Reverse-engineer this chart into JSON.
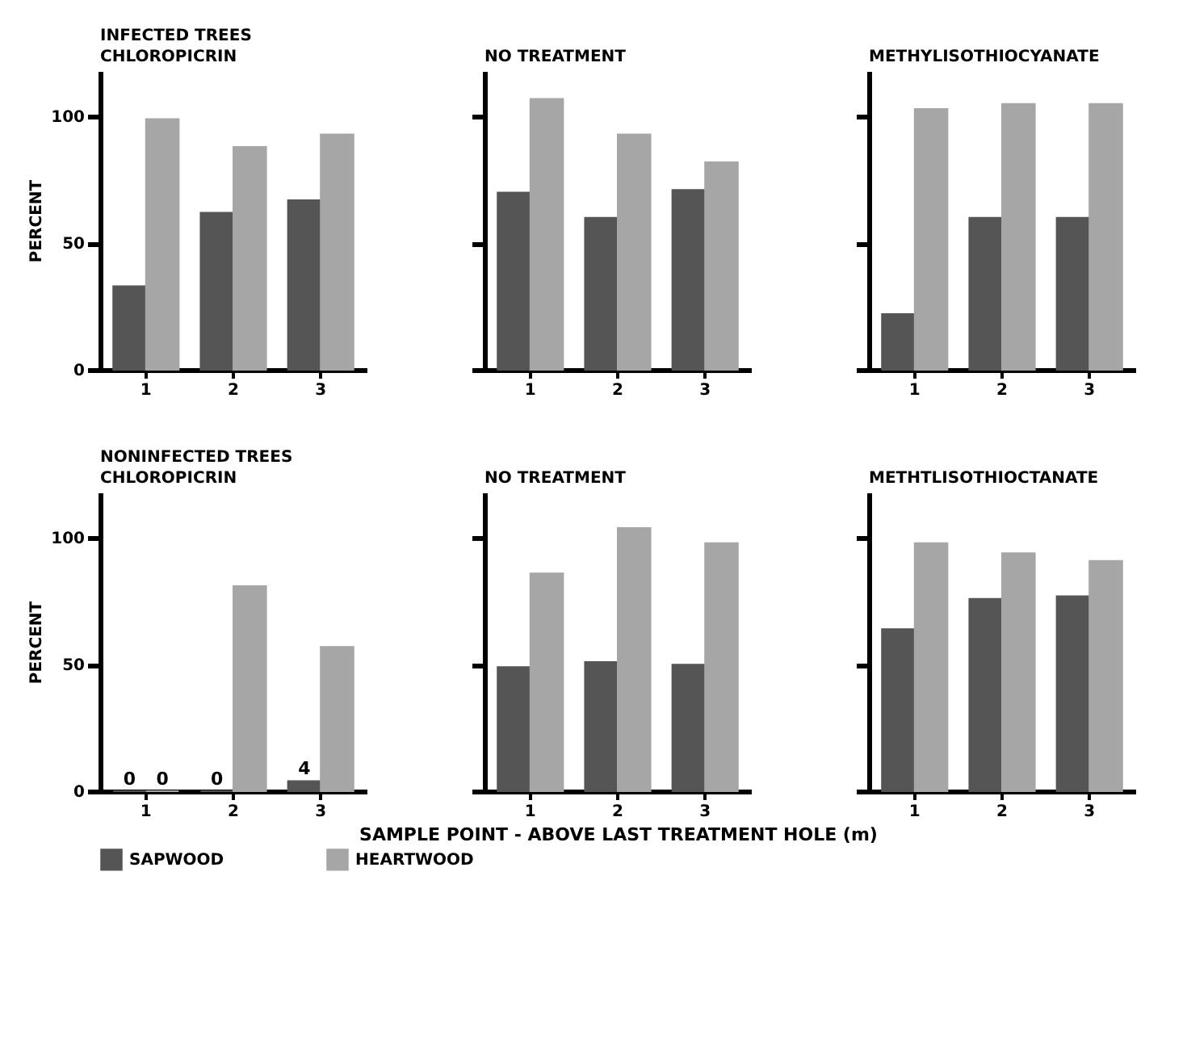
{
  "chart_data": [
    {
      "type": "bar",
      "title": "INFECTED TREES",
      "subtitle": "CHLOROPICRIN",
      "ylabel": "PERCENT",
      "categories": [
        "1",
        "2",
        "3"
      ],
      "ylim": [
        0,
        118
      ],
      "yticks": [
        0,
        50,
        100
      ],
      "grid": false,
      "series": [
        {
          "color": "#555555",
          "values": [
            33,
            62,
            67
          ]
        },
        {
          "color": "#a6a6a6",
          "values": [
            99,
            88,
            93
          ]
        }
      ]
    },
    {
      "type": "bar",
      "title": "NO TREATMENT",
      "categories": [
        "1",
        "2",
        "3"
      ],
      "ylim": [
        0,
        118
      ],
      "yticks": [
        {
          "value": 0,
          "label": null
        },
        {
          "value": 50,
          "label": null
        },
        {
          "value": 100,
          "label": null
        }
      ],
      "tick_labels": "x",
      "grid": false,
      "series": [
        {
          "color": "#555555",
          "values": [
            70,
            60,
            71
          ]
        },
        {
          "color": "#a6a6a6",
          "values": [
            107,
            93,
            82
          ]
        }
      ]
    },
    {
      "type": "bar",
      "title": "METHYLISOTHIOCYANATE",
      "categories": [
        "1",
        "2",
        "3"
      ],
      "ylim": [
        0,
        118
      ],
      "yticks": [
        {
          "value": 0,
          "label": null
        },
        {
          "value": 50,
          "label": null
        },
        {
          "value": 100,
          "label": null
        }
      ],
      "tick_labels": "x",
      "grid": false,
      "series": [
        {
          "color": "#555555",
          "values": [
            22,
            60,
            60
          ]
        },
        {
          "color": "#a6a6a6",
          "values": [
            103,
            105,
            105
          ]
        }
      ]
    },
    {
      "type": "bar",
      "title": "NONINFECTED TREES",
      "subtitle": "CHLOROPICRIN",
      "ylabel": "PERCENT",
      "categories": [
        "1",
        "2",
        "3"
      ],
      "ylim": [
        0,
        118
      ],
      "yticks": [
        0,
        50,
        100
      ],
      "grid": false,
      "legend": "bottom",
      "series": [
        {
          "name": "SAPWOOD",
          "color": "#555555",
          "values": [
            0,
            0,
            4
          ],
          "value_labels": [
            "0",
            "0",
            "4"
          ]
        },
        {
          "name": "HEARTWOOD",
          "color": "#a6a6a6",
          "values": [
            0,
            81,
            57
          ],
          "value_labels": [
            "0",
            null,
            null
          ]
        }
      ]
    },
    {
      "type": "bar",
      "title": "NO TREATMENT",
      "xlabel": "SAMPLE POINT - ABOVE LAST TREATMENT HOLE (m)",
      "categories": [
        "1",
        "2",
        "3"
      ],
      "ylim": [
        0,
        118
      ],
      "yticks": [
        {
          "value": 0,
          "label": null
        },
        {
          "value": 50,
          "label": null
        },
        {
          "value": 100,
          "label": null
        }
      ],
      "tick_labels": "x",
      "grid": false,
      "series": [
        {
          "color": "#555555",
          "values": [
            49,
            51,
            50
          ]
        },
        {
          "color": "#a6a6a6",
          "values": [
            86,
            104,
            98
          ]
        }
      ]
    },
    {
      "type": "bar",
      "title": "METHTLISOTHIOCTANATE",
      "categories": [
        "1",
        "2",
        "3"
      ],
      "ylim": [
        0,
        118
      ],
      "yticks": [
        {
          "value": 0,
          "label": null
        },
        {
          "value": 50,
          "label": null
        },
        {
          "value": 100,
          "label": null
        }
      ],
      "tick_labels": "x",
      "grid": false,
      "series": [
        {
          "color": "#555555",
          "values": [
            64,
            76,
            77
          ]
        },
        {
          "color": "#a6a6a6",
          "values": [
            98,
            94,
            91
          ]
        }
      ]
    }
  ]
}
